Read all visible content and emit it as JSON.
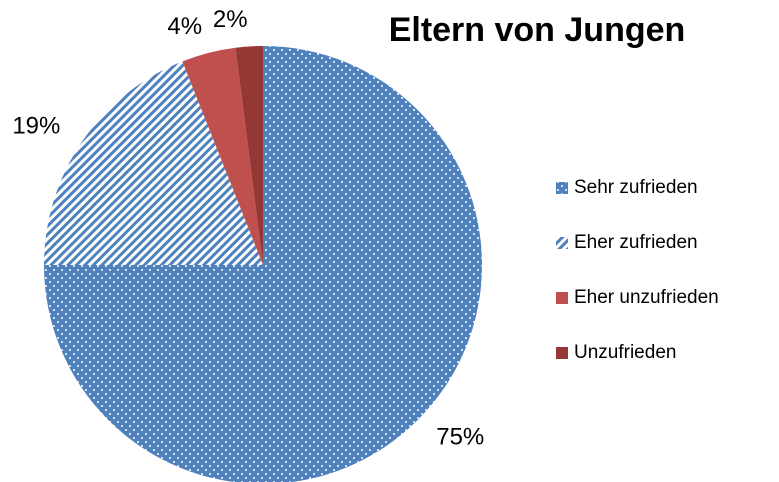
{
  "chart_data": {
    "type": "pie",
    "title": "Eltern von Jungen",
    "categories": [
      "Sehr zufrieden",
      "Eher zufrieden",
      "Eher unzufrieden",
      "Unzufrieden"
    ],
    "values": [
      75,
      19,
      4,
      2
    ],
    "value_labels": [
      "75%",
      "19%",
      "4%",
      "2%"
    ],
    "colors": [
      "#4f81bd",
      "#4f81bd",
      "#c0504d",
      "#953735"
    ],
    "patterns": [
      "dots",
      "stripes",
      "solid",
      "solid"
    ],
    "legend": "right"
  }
}
